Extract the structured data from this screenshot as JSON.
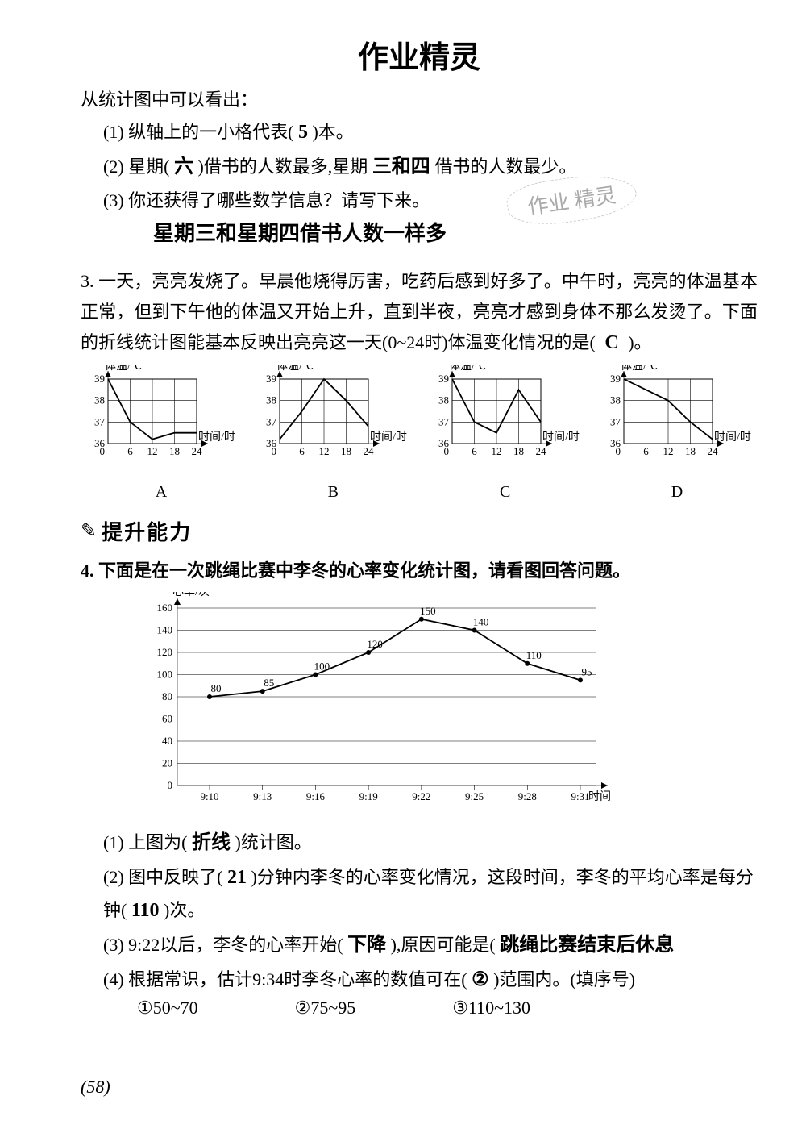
{
  "header_hand": "作业精灵",
  "watermark": "作业\n精灵",
  "intro": "从统计图中可以看出：",
  "q1": {
    "prefix": "(1)  纵轴上的一小格代表(",
    "ans": "5",
    "suffix": ")本。"
  },
  "q2": {
    "prefix": "(2)  星期(",
    "ans1": "六",
    "mid1": ")借书的人数最多,星期",
    "ans2": "三和四",
    "suffix": "借书的人数最少。"
  },
  "q3_line1": "(3)  你还获得了哪些数学信息？请写下来。",
  "q3_ans": "星期三和星期四借书人数一样多",
  "problem3": {
    "num": "3.",
    "text": "一天，亮亮发烧了。早晨他烧得厉害，吃药后感到好多了。中午时，亮亮的体温基本正常，但到下午他的体温又开始上升，直到半夜，亮亮才感到身体不那么发烫了。下面的折线统计图能基本反映出亮亮这一天(0~24时)体温变化情况的是(",
    "ans": "C",
    "suffix": ")。"
  },
  "mini": {
    "ylabel": "体温/℃",
    "xlabel": "时间/时",
    "yticks": [
      "36",
      "37",
      "38",
      "39"
    ],
    "xticks": [
      "0",
      "6",
      "12",
      "18",
      "24"
    ],
    "ymin": 36,
    "ymax": 39,
    "xmin": 0,
    "xmax": 24,
    "series": {
      "A": [
        [
          0,
          39
        ],
        [
          6,
          37
        ],
        [
          12,
          36.2
        ],
        [
          18,
          36.5
        ],
        [
          24,
          36.5
        ]
      ],
      "B": [
        [
          0,
          36.2
        ],
        [
          6,
          37.5
        ],
        [
          12,
          39
        ],
        [
          18,
          38
        ],
        [
          24,
          36.8
        ]
      ],
      "C": [
        [
          0,
          39
        ],
        [
          6,
          37
        ],
        [
          12,
          36.5
        ],
        [
          18,
          38.5
        ],
        [
          24,
          37
        ]
      ],
      "D": [
        [
          0,
          39
        ],
        [
          6,
          38.5
        ],
        [
          12,
          38
        ],
        [
          18,
          37
        ],
        [
          24,
          36.2
        ]
      ]
    },
    "labels": [
      "A",
      "B",
      "C",
      "D"
    ],
    "grid_color": "#000"
  },
  "ability_icon": "✎",
  "ability": "提升能力",
  "problem4": {
    "num": "4.",
    "title": "下面是在一次跳绳比赛中李冬的心率变化统计图，请看图回答问题。"
  },
  "big": {
    "ylabel": "心率/次",
    "xlabel": "时间",
    "yticks": [
      0,
      20,
      40,
      60,
      80,
      100,
      120,
      140,
      160
    ],
    "xticks": [
      "9:10",
      "9:13",
      "9:16",
      "9:19",
      "9:22",
      "9:25",
      "9:28",
      "9:31"
    ],
    "values": [
      80,
      85,
      100,
      120,
      150,
      140,
      110,
      95
    ],
    "value_labels": [
      "80",
      "85",
      "100",
      "120",
      "150",
      "140",
      "110",
      "95"
    ],
    "ymin": 0,
    "ymax": 160,
    "grid_color": "#000",
    "line_color": "#000",
    "bg": "#ffffff"
  },
  "q4_1": {
    "prefix": "(1)  上图为(",
    "ans": "折线",
    "suffix": ")统计图。"
  },
  "q4_2": {
    "prefix": "(2)  图中反映了(",
    "ans1": "21",
    "mid": ")分钟内李冬的心率变化情况，这段时间，李冬的平均心率是每分钟(",
    "ans2": "110",
    "suffix": ")次。"
  },
  "q4_3": {
    "prefix": "(3)  9:22以后，李冬的心率开始(",
    "ans1": "下降",
    "mid": "),原因可能是(",
    "ans2": "跳绳比赛结束后休息",
    "suffix": ""
  },
  "q4_4": {
    "prefix": "(4)  根据常识，估计9:34时李冬心率的数值可在(",
    "ans": "②",
    "suffix": ")范围内。(填序号)"
  },
  "options": {
    "o1": "①50~70",
    "o2": "②75~95",
    "o3": "③110~130"
  },
  "page_num": "58"
}
